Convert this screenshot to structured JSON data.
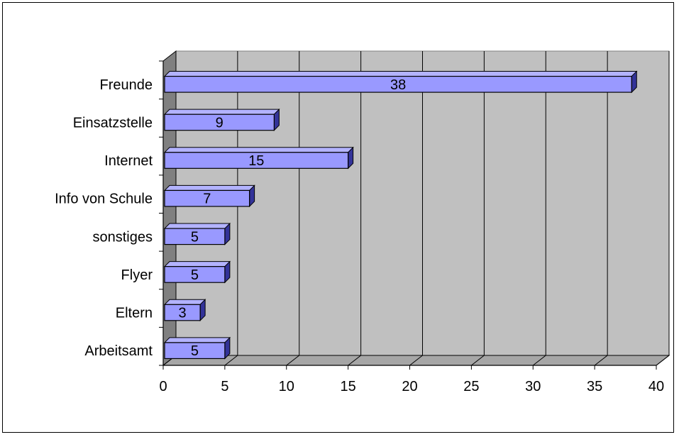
{
  "chart_data": {
    "type": "bar",
    "orientation": "horizontal",
    "style": "3d",
    "title": "",
    "xlabel": "",
    "ylabel": "",
    "categories": [
      "Freunde",
      "Einsatzstelle",
      "Internet",
      "Info von Schule",
      "sonstiges",
      "Flyer",
      "Eltern",
      "Arbeitsamt"
    ],
    "values": [
      38,
      9,
      15,
      7,
      5,
      5,
      3,
      5
    ],
    "data_labels": [
      "38",
      "9",
      "15",
      "7",
      "5",
      "5",
      "3",
      "5"
    ],
    "xlim": [
      0,
      40
    ],
    "xticks": [
      0,
      5,
      10,
      15,
      20,
      25,
      30,
      35,
      40
    ],
    "xtick_labels": [
      "0",
      "5",
      "10",
      "15",
      "20",
      "25",
      "30",
      "35",
      "40"
    ],
    "grid": true,
    "legend": "none"
  },
  "colors": {
    "bar_front": "#9999FF",
    "bar_top": "#B3B3FF",
    "bar_side": "#333399",
    "plot_back": "#C0C0C0",
    "plot_side": "#808080",
    "plot_floor": "#A6A6A6",
    "grid": "#000000"
  }
}
